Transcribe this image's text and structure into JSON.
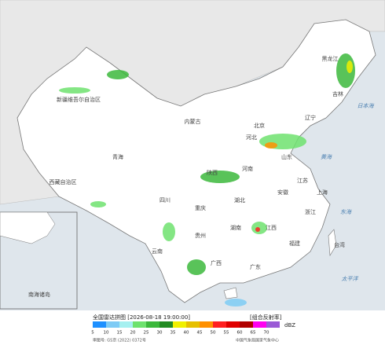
{
  "map": {
    "title": "全国雷达拼图 [2026-08-18 19:00:00]",
    "product": "[组合反射率]",
    "unit": "dBZ",
    "legend": {
      "values": [
        5,
        10,
        15,
        20,
        25,
        30,
        35,
        40,
        45,
        50,
        55,
        60,
        65,
        70
      ],
      "colors": [
        "#1e90ff",
        "#7ecbf5",
        "#a6f0f0",
        "#6ee26e",
        "#3cb83c",
        "#228b22",
        "#f0f000",
        "#e6c000",
        "#ff9000",
        "#ff2020",
        "#e00000",
        "#b00000",
        "#ff00f0",
        "#9a5ad6"
      ]
    },
    "approval": "审图号: GS京 (2022) 0372号",
    "source": "中国气象局国家气象中心",
    "labels": [
      "新疆维吾尔自治区",
      "西藏自治区",
      "青海",
      "内蒙古",
      "黑龙江",
      "吉林",
      "辽宁",
      "北京",
      "河北",
      "山东",
      "河南",
      "江苏",
      "上海",
      "安徽",
      "湖北",
      "四川",
      "重庆",
      "湖南",
      "江西",
      "浙江",
      "福建",
      "台湾",
      "贵州",
      "云南",
      "广西",
      "广东",
      "陕西",
      "日本海",
      "黄海",
      "东海",
      "太平洋",
      "南海诸岛"
    ]
  }
}
